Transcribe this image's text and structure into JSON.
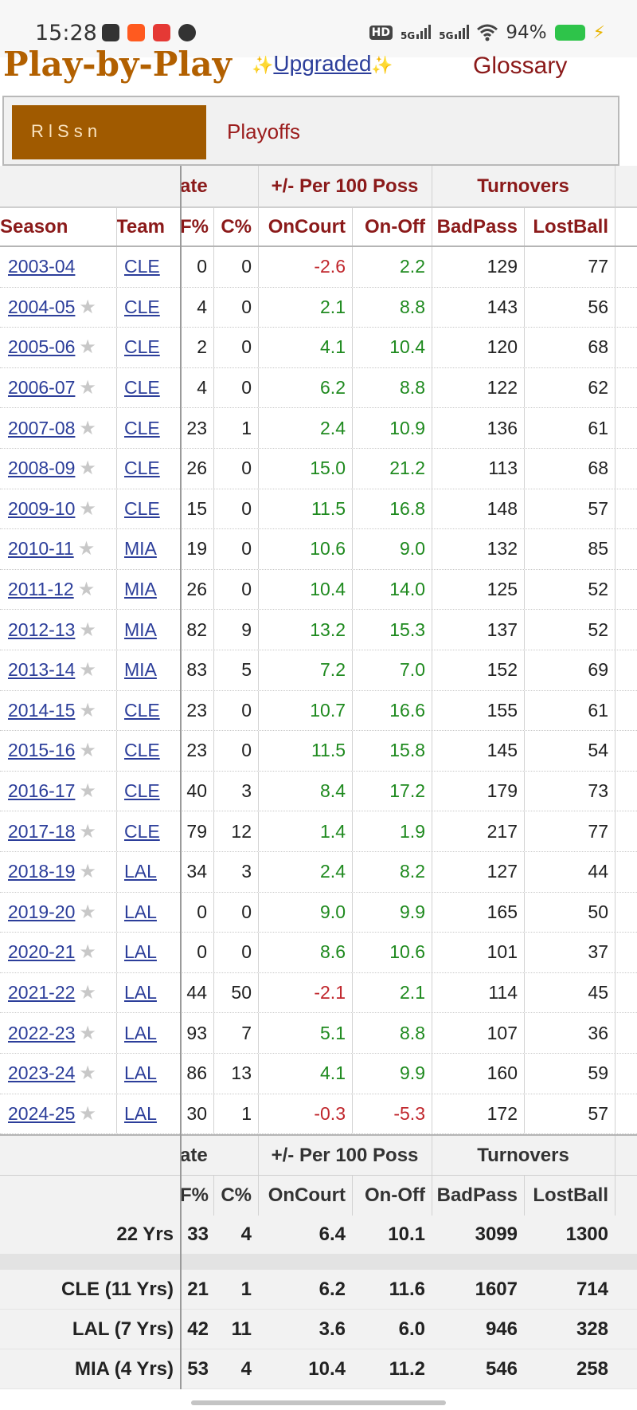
{
  "status_bar": {
    "time": "15:28",
    "hd": "HD",
    "signal1": "5G",
    "signal2": "5G",
    "battery": "94%",
    "icons": [
      "message-icon",
      "shop-icon",
      "app-icon",
      "chat-icon",
      "wifi-icon",
      "battery-icon",
      "bolt-icon"
    ]
  },
  "header": {
    "title": "Play-by-Play",
    "upgraded": "Upgraded",
    "spark": "✨",
    "glossary": "Glossary"
  },
  "filter": {
    "active": "R  l   S   s  n",
    "playoffs": "Playoffs"
  },
  "groups": {
    "rate": "ate",
    "plusminus": "+/- Per 100 Poss",
    "turnovers": "Turnovers"
  },
  "columns": {
    "season": "Season",
    "team": "Team",
    "pf": "F%",
    "c": "C%",
    "oncourt": "OnCourt",
    "onoff": "On-Off",
    "badpass": "BadPass",
    "lostball": "LostBall"
  },
  "rows": [
    {
      "season": "2003-04",
      "star": "",
      "team": "CLE",
      "pf": "0",
      "c": "0",
      "oncourt": "-2.6",
      "onoff": "2.2",
      "badpass": "129",
      "lostball": "77"
    },
    {
      "season": "2004-05",
      "star": "★",
      "team": "CLE",
      "pf": "4",
      "c": "0",
      "oncourt": "2.1",
      "onoff": "8.8",
      "badpass": "143",
      "lostball": "56"
    },
    {
      "season": "2005-06",
      "star": "★",
      "team": "CLE",
      "pf": "2",
      "c": "0",
      "oncourt": "4.1",
      "onoff": "10.4",
      "badpass": "120",
      "lostball": "68"
    },
    {
      "season": "2006-07",
      "star": "★",
      "team": "CLE",
      "pf": "4",
      "c": "0",
      "oncourt": "6.2",
      "onoff": "8.8",
      "badpass": "122",
      "lostball": "62"
    },
    {
      "season": "2007-08",
      "star": "★",
      "team": "CLE",
      "pf": "23",
      "c": "1",
      "oncourt": "2.4",
      "onoff": "10.9",
      "badpass": "136",
      "lostball": "61"
    },
    {
      "season": "2008-09",
      "star": "★",
      "team": "CLE",
      "pf": "26",
      "c": "0",
      "oncourt": "15.0",
      "onoff": "21.2",
      "badpass": "113",
      "lostball": "68"
    },
    {
      "season": "2009-10",
      "star": "★",
      "team": "CLE",
      "pf": "15",
      "c": "0",
      "oncourt": "11.5",
      "onoff": "16.8",
      "badpass": "148",
      "lostball": "57"
    },
    {
      "season": "2010-11",
      "star": "★",
      "team": "MIA",
      "pf": "19",
      "c": "0",
      "oncourt": "10.6",
      "onoff": "9.0",
      "badpass": "132",
      "lostball": "85"
    },
    {
      "season": "2011-12",
      "star": "★",
      "team": "MIA",
      "pf": "26",
      "c": "0",
      "oncourt": "10.4",
      "onoff": "14.0",
      "badpass": "125",
      "lostball": "52"
    },
    {
      "season": "2012-13",
      "star": "★",
      "team": "MIA",
      "pf": "82",
      "c": "9",
      "oncourt": "13.2",
      "onoff": "15.3",
      "badpass": "137",
      "lostball": "52"
    },
    {
      "season": "2013-14",
      "star": "★",
      "team": "MIA",
      "pf": "83",
      "c": "5",
      "oncourt": "7.2",
      "onoff": "7.0",
      "badpass": "152",
      "lostball": "69"
    },
    {
      "season": "2014-15",
      "star": "★",
      "team": "CLE",
      "pf": "23",
      "c": "0",
      "oncourt": "10.7",
      "onoff": "16.6",
      "badpass": "155",
      "lostball": "61"
    },
    {
      "season": "2015-16",
      "star": "★",
      "team": "CLE",
      "pf": "23",
      "c": "0",
      "oncourt": "11.5",
      "onoff": "15.8",
      "badpass": "145",
      "lostball": "54"
    },
    {
      "season": "2016-17",
      "star": "★",
      "team": "CLE",
      "pf": "40",
      "c": "3",
      "oncourt": "8.4",
      "onoff": "17.2",
      "badpass": "179",
      "lostball": "73"
    },
    {
      "season": "2017-18",
      "star": "★",
      "team": "CLE",
      "pf": "79",
      "c": "12",
      "oncourt": "1.4",
      "onoff": "1.9",
      "badpass": "217",
      "lostball": "77"
    },
    {
      "season": "2018-19",
      "star": "★",
      "team": "LAL",
      "pf": "34",
      "c": "3",
      "oncourt": "2.4",
      "onoff": "8.2",
      "badpass": "127",
      "lostball": "44"
    },
    {
      "season": "2019-20",
      "star": "★",
      "team": "LAL",
      "pf": "0",
      "c": "0",
      "oncourt": "9.0",
      "onoff": "9.9",
      "badpass": "165",
      "lostball": "50"
    },
    {
      "season": "2020-21",
      "star": "★",
      "team": "LAL",
      "pf": "0",
      "c": "0",
      "oncourt": "8.6",
      "onoff": "10.6",
      "badpass": "101",
      "lostball": "37"
    },
    {
      "season": "2021-22",
      "star": "★",
      "team": "LAL",
      "pf": "44",
      "c": "50",
      "oncourt": "-2.1",
      "onoff": "2.1",
      "badpass": "114",
      "lostball": "45"
    },
    {
      "season": "2022-23",
      "star": "★",
      "team": "LAL",
      "pf": "93",
      "c": "7",
      "oncourt": "5.1",
      "onoff": "8.8",
      "badpass": "107",
      "lostball": "36"
    },
    {
      "season": "2023-24",
      "star": "★",
      "team": "LAL",
      "pf": "86",
      "c": "13",
      "oncourt": "4.1",
      "onoff": "9.9",
      "badpass": "160",
      "lostball": "59"
    },
    {
      "season": "2024-25",
      "star": "★",
      "team": "LAL",
      "pf": "30",
      "c": "1",
      "oncourt": "-0.3",
      "onoff": "-5.3",
      "badpass": "172",
      "lostball": "57"
    }
  ],
  "totals": {
    "career": {
      "label": "22 Yrs",
      "pf": "33",
      "c": "4",
      "oncourt": "6.4",
      "onoff": "10.1",
      "badpass": "3099",
      "lostball": "1300"
    },
    "teams": [
      {
        "label": "CLE (11 Yrs)",
        "pf": "21",
        "c": "1",
        "oncourt": "6.2",
        "onoff": "11.6",
        "badpass": "1607",
        "lostball": "714"
      },
      {
        "label": "LAL (7 Yrs)",
        "pf": "42",
        "c": "11",
        "oncourt": "3.6",
        "onoff": "6.0",
        "badpass": "946",
        "lostball": "328"
      },
      {
        "label": "MIA (4 Yrs)",
        "pf": "53",
        "c": "4",
        "oncourt": "10.4",
        "onoff": "11.2",
        "badpass": "546",
        "lostball": "258"
      }
    ]
  },
  "colors": {
    "header_red": "#8b1a1a",
    "link_blue": "#2c3e9a",
    "positive_green": "#1f8a1f",
    "negative_red": "#c0262c",
    "title_brown": "#b26000"
  }
}
